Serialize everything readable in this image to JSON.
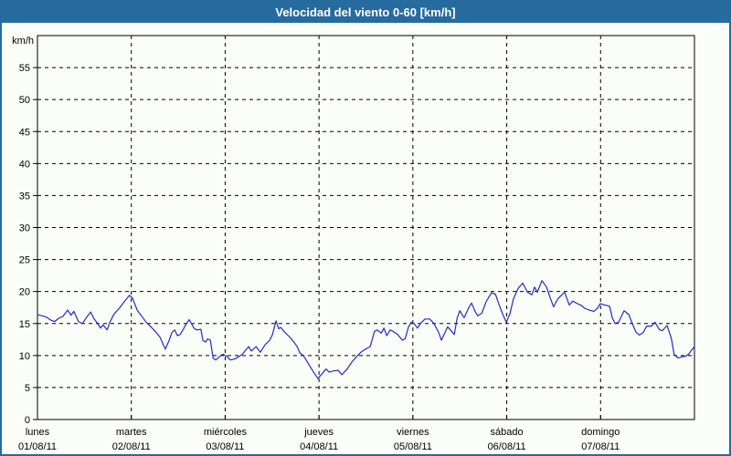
{
  "window": {
    "title": "Velocidad del viento 0-60 [km/h]"
  },
  "colors": {
    "frame_blue": "#266b9d",
    "title_text": "#ffffff",
    "background": "#fbfdf8",
    "plot_border": "#000000",
    "grid": "#000000",
    "line": "#2929c8",
    "tick_text": "#000000"
  },
  "chart_data": {
    "type": "line",
    "title": "Velocidad del viento 0-60 [km/h]",
    "ylabel": "km/h",
    "xlabel": "",
    "ylim": [
      0,
      60
    ],
    "yticks": [
      0,
      5,
      10,
      15,
      20,
      25,
      30,
      35,
      40,
      45,
      50,
      55
    ],
    "x_unit": "hours_from_monday_00h",
    "xlim": [
      0,
      168
    ],
    "grid": "dashed",
    "legend_position": "none",
    "categories": [
      {
        "day": "lunes",
        "date": "01/08/11",
        "hour": 0
      },
      {
        "day": "martes",
        "date": "02/08/11",
        "hour": 24
      },
      {
        "day": "miércoles",
        "date": "03/08/11",
        "hour": 48
      },
      {
        "day": "jueves",
        "date": "04/08/11",
        "hour": 72
      },
      {
        "day": "viernes",
        "date": "05/08/11",
        "hour": 96
      },
      {
        "day": "sábado",
        "date": "06/08/11",
        "hour": 120
      },
      {
        "day": "domingo",
        "date": "07/08/11",
        "hour": 144
      }
    ],
    "series": [
      {
        "name": "Velocidad del viento",
        "color": "#2929c8",
        "points": [
          [
            0,
            16.4
          ],
          [
            1.2,
            16.2
          ],
          [
            2.3,
            16.0
          ],
          [
            3.5,
            15.5
          ],
          [
            4.4,
            15.3
          ],
          [
            5.4,
            15.8
          ],
          [
            6.5,
            16.1
          ],
          [
            7.7,
            17.1
          ],
          [
            8.6,
            16.3
          ],
          [
            9.3,
            16.9
          ],
          [
            10.5,
            15.3
          ],
          [
            11.5,
            15.0
          ],
          [
            12.6,
            16.0
          ],
          [
            13.6,
            16.8
          ],
          [
            14.5,
            15.7
          ],
          [
            15.4,
            15.0
          ],
          [
            16.1,
            14.3
          ],
          [
            16.8,
            14.8
          ],
          [
            17.8,
            14.0
          ],
          [
            18.5,
            15.2
          ],
          [
            19.6,
            16.5
          ],
          [
            20.8,
            17.3
          ],
          [
            22.2,
            18.4
          ],
          [
            23.5,
            19.4
          ],
          [
            24.3,
            19.0
          ],
          [
            25.5,
            17.1
          ],
          [
            26.6,
            16.2
          ],
          [
            27.8,
            15.2
          ],
          [
            29.0,
            14.5
          ],
          [
            30.1,
            13.8
          ],
          [
            31.3,
            12.9
          ],
          [
            32.7,
            11.0
          ],
          [
            33.7,
            12.4
          ],
          [
            34.4,
            13.6
          ],
          [
            35.1,
            14.0
          ],
          [
            35.8,
            13.1
          ],
          [
            36.5,
            13.3
          ],
          [
            37.2,
            14.0
          ],
          [
            37.9,
            14.8
          ],
          [
            38.8,
            15.6
          ],
          [
            40.0,
            14.3
          ],
          [
            40.7,
            14.0
          ],
          [
            41.8,
            14.1
          ],
          [
            42.3,
            12.4
          ],
          [
            43.0,
            12.1
          ],
          [
            43.5,
            12.6
          ],
          [
            44.2,
            12.4
          ],
          [
            44.9,
            9.6
          ],
          [
            45.6,
            9.3
          ],
          [
            46.5,
            9.8
          ],
          [
            47.4,
            10.2
          ],
          [
            48.4,
            9.9
          ],
          [
            49.3,
            9.3
          ],
          [
            50.7,
            9.5
          ],
          [
            52.4,
            10.2
          ],
          [
            54.0,
            11.4
          ],
          [
            54.7,
            10.7
          ],
          [
            55.9,
            11.4
          ],
          [
            57.0,
            10.5
          ],
          [
            58.2,
            11.7
          ],
          [
            59.4,
            12.4
          ],
          [
            60.1,
            13.3
          ],
          [
            61.0,
            15.4
          ],
          [
            61.7,
            14.2
          ],
          [
            62.2,
            14.4
          ],
          [
            63.3,
            13.6
          ],
          [
            64.5,
            12.9
          ],
          [
            65.7,
            12.0
          ],
          [
            66.4,
            11.4
          ],
          [
            67.1,
            10.4
          ],
          [
            68.0,
            10.0
          ],
          [
            68.7,
            9.3
          ],
          [
            69.4,
            8.6
          ],
          [
            70.6,
            7.4
          ],
          [
            71.7,
            6.4
          ],
          [
            72.7,
            7.1
          ],
          [
            73.8,
            7.9
          ],
          [
            74.6,
            7.4
          ],
          [
            75.7,
            7.6
          ],
          [
            76.9,
            7.7
          ],
          [
            77.8,
            7.0
          ],
          [
            79.2,
            7.9
          ],
          [
            80.4,
            9.0
          ],
          [
            81.6,
            9.8
          ],
          [
            82.7,
            10.5
          ],
          [
            83.9,
            11.0
          ],
          [
            85.1,
            11.4
          ],
          [
            86.2,
            13.8
          ],
          [
            86.9,
            14.0
          ],
          [
            87.9,
            13.5
          ],
          [
            88.6,
            14.3
          ],
          [
            89.3,
            13.1
          ],
          [
            90.2,
            14.0
          ],
          [
            90.9,
            13.8
          ],
          [
            92.1,
            13.3
          ],
          [
            93.3,
            12.4
          ],
          [
            94.0,
            12.6
          ],
          [
            94.9,
            14.5
          ],
          [
            95.6,
            15.2
          ],
          [
            96.3,
            15.0
          ],
          [
            97.2,
            14.3
          ],
          [
            97.9,
            15.0
          ],
          [
            99.1,
            15.7
          ],
          [
            100.3,
            15.7
          ],
          [
            101.4,
            15.0
          ],
          [
            102.6,
            13.6
          ],
          [
            103.3,
            12.4
          ],
          [
            104.2,
            13.6
          ],
          [
            104.9,
            14.5
          ],
          [
            105.6,
            14.0
          ],
          [
            106.6,
            13.3
          ],
          [
            107.3,
            15.8
          ],
          [
            108.0,
            17.0
          ],
          [
            109.1,
            15.9
          ],
          [
            110.3,
            17.5
          ],
          [
            111.0,
            18.2
          ],
          [
            111.9,
            16.9
          ],
          [
            112.6,
            16.2
          ],
          [
            113.6,
            16.6
          ],
          [
            114.8,
            18.5
          ],
          [
            116.1,
            19.8
          ],
          [
            117.1,
            19.6
          ],
          [
            118.0,
            18.0
          ],
          [
            119.0,
            16.4
          ],
          [
            119.9,
            15.2
          ],
          [
            120.8,
            16.5
          ],
          [
            121.7,
            18.8
          ],
          [
            122.9,
            20.5
          ],
          [
            124.1,
            21.3
          ],
          [
            125.3,
            19.9
          ],
          [
            126.4,
            19.5
          ],
          [
            127.1,
            20.7
          ],
          [
            127.8,
            19.9
          ],
          [
            129.0,
            21.7
          ],
          [
            130.2,
            20.7
          ],
          [
            131.1,
            19.0
          ],
          [
            132.0,
            17.6
          ],
          [
            133.0,
            18.8
          ],
          [
            134.1,
            19.5
          ],
          [
            134.8,
            19.9
          ],
          [
            136.0,
            17.9
          ],
          [
            136.9,
            18.5
          ],
          [
            138.1,
            18.1
          ],
          [
            139.2,
            17.8
          ],
          [
            139.9,
            17.4
          ],
          [
            141.1,
            17.1
          ],
          [
            142.3,
            16.9
          ],
          [
            143.2,
            17.4
          ],
          [
            143.9,
            18.1
          ],
          [
            145.1,
            17.9
          ],
          [
            146.3,
            17.7
          ],
          [
            147.0,
            15.9
          ],
          [
            147.7,
            15.0
          ],
          [
            148.6,
            15.2
          ],
          [
            150.0,
            17.0
          ],
          [
            151.2,
            16.4
          ],
          [
            152.1,
            15.0
          ],
          [
            153.0,
            13.7
          ],
          [
            153.9,
            13.2
          ],
          [
            154.9,
            13.6
          ],
          [
            155.8,
            14.6
          ],
          [
            157.0,
            14.6
          ],
          [
            157.9,
            15.2
          ],
          [
            159.1,
            14.0
          ],
          [
            159.8,
            13.9
          ],
          [
            161.0,
            14.7
          ],
          [
            162.1,
            12.7
          ],
          [
            162.8,
            10.2
          ],
          [
            163.8,
            9.6
          ],
          [
            164.9,
            9.8
          ],
          [
            165.8,
            9.9
          ],
          [
            166.5,
            10.2
          ],
          [
            167.2,
            10.8
          ],
          [
            167.9,
            11.3
          ]
        ]
      }
    ]
  }
}
